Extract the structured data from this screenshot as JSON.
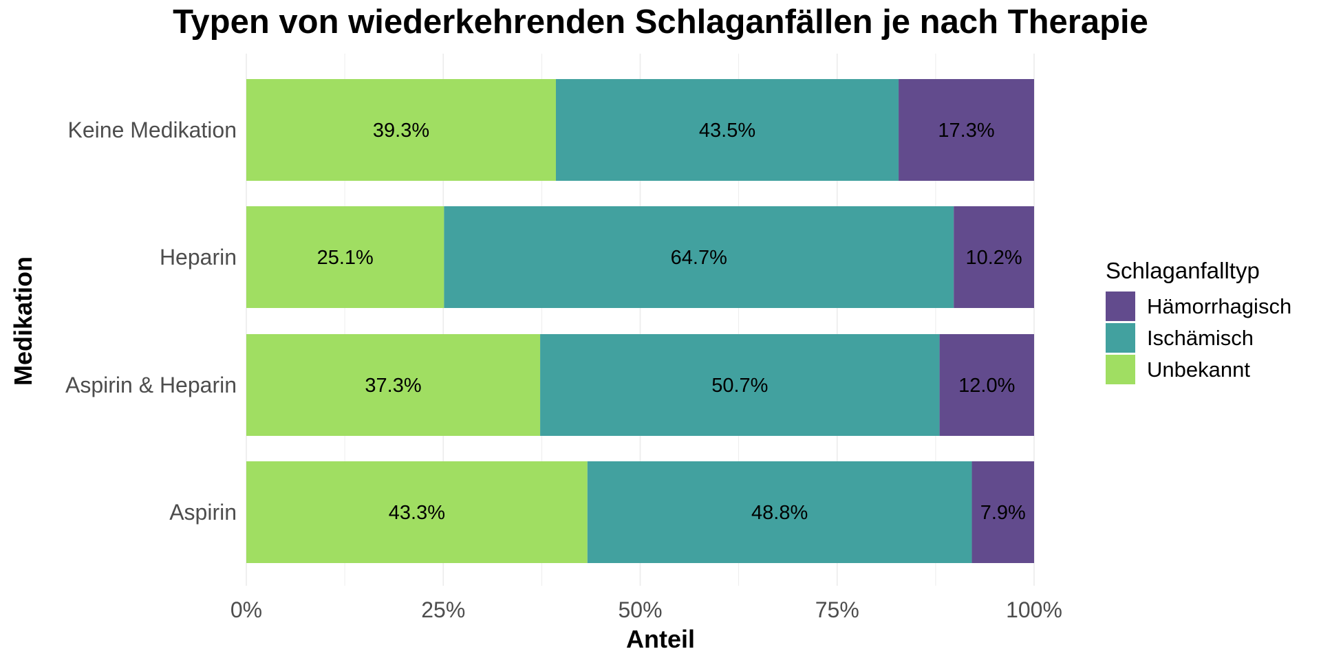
{
  "chart_data": {
    "type": "bar",
    "orientation": "horizontal",
    "stacked": "percent",
    "title": "Typen von wiederkehrenden Schlaganfällen je nach Therapie",
    "xlabel": "Anteil",
    "ylabel": "Medikation",
    "xlim": [
      0,
      1
    ],
    "x_ticks": [
      0,
      0.25,
      0.5,
      0.75,
      1
    ],
    "x_tick_labels": [
      "0%",
      "25%",
      "50%",
      "75%",
      "100%"
    ],
    "grid": true,
    "categories": [
      "Keine Medikation",
      "Heparin",
      "Aspirin & Heparin",
      "Aspirin"
    ],
    "series": [
      {
        "name": "Unbekannt",
        "color": "#A0DE62",
        "values": [
          0.393,
          0.251,
          0.373,
          0.433
        ],
        "labels": [
          "39.3%",
          "25.1%",
          "37.3%",
          "43.3%"
        ]
      },
      {
        "name": "Ischämisch",
        "color": "#42A19F",
        "values": [
          0.435,
          0.647,
          0.507,
          0.488
        ],
        "labels": [
          "43.5%",
          "64.7%",
          "50.7%",
          "48.8%"
        ]
      },
      {
        "name": "Hämorrhagisch",
        "color": "#624B8D",
        "values": [
          0.173,
          0.102,
          0.12,
          0.079
        ],
        "labels": [
          "17.3%",
          "10.2%",
          "12.0%",
          "7.9%"
        ]
      }
    ],
    "legend": {
      "title": "Schlaganfalltyp",
      "position": "right",
      "order": [
        "Hämorrhagisch",
        "Ischämisch",
        "Unbekannt"
      ]
    }
  }
}
